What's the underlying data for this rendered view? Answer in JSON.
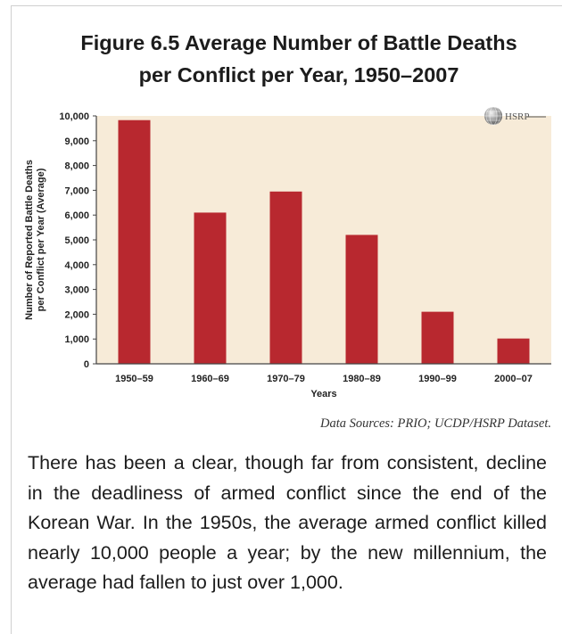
{
  "figure": {
    "title_line1": "Figure 6.5 Average Number of Battle Deaths",
    "title_line2": "per Conflict per Year, 1950–2007"
  },
  "brand": {
    "label": "HSRP"
  },
  "chart_data": {
    "type": "bar",
    "categories": [
      "1950–59",
      "1960–69",
      "1970–79",
      "1980–89",
      "1990–99",
      "2000–07"
    ],
    "values": [
      9830,
      6100,
      6950,
      5200,
      2100,
      1020
    ],
    "ylabel_line1": "Number of Reported Battle Deaths",
    "ylabel_line2": "per Conflict per Year (Average)",
    "xlabel": "Years",
    "ylim": [
      0,
      10000
    ],
    "yticks": [
      "0",
      "1,000",
      "2,000",
      "3,000",
      "4,000",
      "5,000",
      "6,000",
      "7,000",
      "8,000",
      "9,000",
      "10,000"
    ],
    "grid": false,
    "bar_color": "#b8282f",
    "plot_background": "#f7ebd8"
  },
  "source_note": "Data Sources: PRIO; UCDP/HSRP Dataset.",
  "body_text": "There has been a clear, though far from consistent, decline in the deadliness of armed conflict since the end of the Korean War. In the 1950s, the average armed conflict killed nearly 10,000 people a year; by the new millennium, the average had fallen to just over 1,000."
}
